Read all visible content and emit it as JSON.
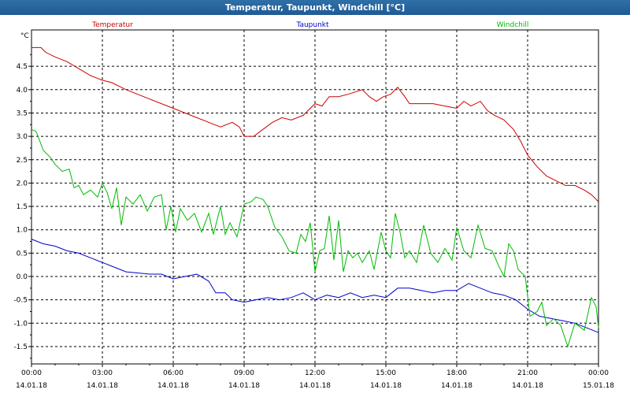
{
  "window": {
    "title": "Temperatur, Taupunkt, Windchill [°C]"
  },
  "chart_data": {
    "type": "line",
    "title": "Temperatur, Taupunkt, Windchill [°C]",
    "unit": "°C",
    "ylim": [
      -1.8,
      5.2
    ],
    "xlim": [
      0,
      24
    ],
    "grid": true,
    "legend_position": "top",
    "yticks": [
      "4.5",
      "4.0",
      "3.5",
      "3.0",
      "2.5",
      "2.0",
      "1.5",
      "1.0",
      "0.5",
      "0.0",
      "-0.5",
      "-1.0",
      "-1.5"
    ],
    "xticks": [
      {
        "time": "00:00",
        "date": "14.01.18"
      },
      {
        "time": "03:00",
        "date": "14.01.18"
      },
      {
        "time": "06:00",
        "date": "14.01.18"
      },
      {
        "time": "09:00",
        "date": "14.01.18"
      },
      {
        "time": "12:00",
        "date": "14.01.18"
      },
      {
        "time": "15:00",
        "date": "14.01.18"
      },
      {
        "time": "18:00",
        "date": "14.01.18"
      },
      {
        "time": "21:00",
        "date": "14.01.18"
      },
      {
        "time": "00:00",
        "date": "15.01.18"
      }
    ],
    "series": [
      {
        "name": "Temperatur",
        "color": "#cc0000",
        "points": [
          [
            0,
            4.9
          ],
          [
            0.4,
            4.9
          ],
          [
            0.6,
            4.8
          ],
          [
            1,
            4.7
          ],
          [
            1.5,
            4.6
          ],
          [
            2,
            4.45
          ],
          [
            2.5,
            4.3
          ],
          [
            3,
            4.2
          ],
          [
            3.4,
            4.15
          ],
          [
            4,
            4.0
          ],
          [
            5,
            3.8
          ],
          [
            6,
            3.6
          ],
          [
            6.5,
            3.5
          ],
          [
            7,
            3.4
          ],
          [
            7.5,
            3.3
          ],
          [
            8,
            3.2
          ],
          [
            8.5,
            3.3
          ],
          [
            8.8,
            3.2
          ],
          [
            9,
            3.0
          ],
          [
            9.4,
            3.0
          ],
          [
            9.8,
            3.15
          ],
          [
            10.2,
            3.3
          ],
          [
            10.6,
            3.4
          ],
          [
            11,
            3.35
          ],
          [
            11.5,
            3.45
          ],
          [
            12,
            3.7
          ],
          [
            12.3,
            3.65
          ],
          [
            12.6,
            3.85
          ],
          [
            13,
            3.85
          ],
          [
            13.4,
            3.9
          ],
          [
            14,
            4.0
          ],
          [
            14.3,
            3.85
          ],
          [
            14.6,
            3.75
          ],
          [
            14.9,
            3.85
          ],
          [
            15.2,
            3.9
          ],
          [
            15.5,
            4.05
          ],
          [
            15.8,
            3.85
          ],
          [
            16,
            3.7
          ],
          [
            16.5,
            3.7
          ],
          [
            17,
            3.7
          ],
          [
            17.5,
            3.65
          ],
          [
            18,
            3.6
          ],
          [
            18.3,
            3.75
          ],
          [
            18.6,
            3.65
          ],
          [
            19,
            3.75
          ],
          [
            19.3,
            3.55
          ],
          [
            19.6,
            3.45
          ],
          [
            20,
            3.35
          ],
          [
            20.4,
            3.15
          ],
          [
            20.7,
            2.9
          ],
          [
            21,
            2.6
          ],
          [
            21.4,
            2.35
          ],
          [
            21.8,
            2.15
          ],
          [
            22.2,
            2.05
          ],
          [
            22.6,
            1.95
          ],
          [
            23,
            1.95
          ],
          [
            23.4,
            1.85
          ],
          [
            23.7,
            1.75
          ],
          [
            24,
            1.6
          ]
        ]
      },
      {
        "name": "Taupunkt",
        "color": "#0000cc",
        "points": [
          [
            0,
            0.8
          ],
          [
            0.5,
            0.7
          ],
          [
            1,
            0.65
          ],
          [
            1.5,
            0.55
          ],
          [
            2,
            0.5
          ],
          [
            2.5,
            0.4
          ],
          [
            3,
            0.3
          ],
          [
            3.5,
            0.2
          ],
          [
            4,
            0.1
          ],
          [
            5,
            0.05
          ],
          [
            5.5,
            0.05
          ],
          [
            6,
            -0.05
          ],
          [
            6.5,
            0.0
          ],
          [
            7,
            0.05
          ],
          [
            7.5,
            -0.1
          ],
          [
            7.8,
            -0.35
          ],
          [
            8.2,
            -0.35
          ],
          [
            8.5,
            -0.5
          ],
          [
            9,
            -0.55
          ],
          [
            9.5,
            -0.5
          ],
          [
            10,
            -0.45
          ],
          [
            10.5,
            -0.5
          ],
          [
            11,
            -0.45
          ],
          [
            11.5,
            -0.35
          ],
          [
            12,
            -0.5
          ],
          [
            12.5,
            -0.4
          ],
          [
            13,
            -0.45
          ],
          [
            13.5,
            -0.35
          ],
          [
            14,
            -0.45
          ],
          [
            14.5,
            -0.4
          ],
          [
            15,
            -0.45
          ],
          [
            15.5,
            -0.25
          ],
          [
            16,
            -0.25
          ],
          [
            16.5,
            -0.3
          ],
          [
            17,
            -0.35
          ],
          [
            17.5,
            -0.3
          ],
          [
            18,
            -0.3
          ],
          [
            18.5,
            -0.15
          ],
          [
            19,
            -0.25
          ],
          [
            19.5,
            -0.35
          ],
          [
            20,
            -0.4
          ],
          [
            20.5,
            -0.5
          ],
          [
            21,
            -0.7
          ],
          [
            21.5,
            -0.85
          ],
          [
            22,
            -0.9
          ],
          [
            22.5,
            -0.95
          ],
          [
            23,
            -1.0
          ],
          [
            23.5,
            -1.1
          ],
          [
            24,
            -1.2
          ]
        ]
      },
      {
        "name": "Windchill",
        "color": "#00bb00",
        "points": [
          [
            0,
            3.15
          ],
          [
            0.2,
            3.1
          ],
          [
            0.5,
            2.7
          ],
          [
            0.8,
            2.55
          ],
          [
            1,
            2.4
          ],
          [
            1.3,
            2.25
          ],
          [
            1.6,
            2.3
          ],
          [
            1.8,
            1.9
          ],
          [
            2,
            1.95
          ],
          [
            2.2,
            1.75
          ],
          [
            2.5,
            1.85
          ],
          [
            2.8,
            1.7
          ],
          [
            3,
            2.0
          ],
          [
            3.2,
            1.8
          ],
          [
            3.4,
            1.45
          ],
          [
            3.6,
            1.9
          ],
          [
            3.8,
            1.1
          ],
          [
            4,
            1.7
          ],
          [
            4.3,
            1.55
          ],
          [
            4.6,
            1.75
          ],
          [
            4.9,
            1.4
          ],
          [
            5.2,
            1.7
          ],
          [
            5.5,
            1.75
          ],
          [
            5.7,
            1.0
          ],
          [
            5.9,
            1.5
          ],
          [
            6.1,
            0.95
          ],
          [
            6.3,
            1.45
          ],
          [
            6.6,
            1.2
          ],
          [
            6.9,
            1.35
          ],
          [
            7.2,
            0.95
          ],
          [
            7.5,
            1.35
          ],
          [
            7.7,
            0.9
          ],
          [
            8,
            1.5
          ],
          [
            8.2,
            0.9
          ],
          [
            8.4,
            1.15
          ],
          [
            8.7,
            0.85
          ],
          [
            9,
            1.55
          ],
          [
            9.3,
            1.6
          ],
          [
            9.5,
            1.7
          ],
          [
            9.8,
            1.65
          ],
          [
            10,
            1.5
          ],
          [
            10.3,
            1.05
          ],
          [
            10.6,
            0.85
          ],
          [
            10.9,
            0.55
          ],
          [
            11.2,
            0.5
          ],
          [
            11.4,
            0.9
          ],
          [
            11.6,
            0.75
          ],
          [
            11.8,
            1.15
          ],
          [
            12,
            0.1
          ],
          [
            12.2,
            0.55
          ],
          [
            12.4,
            0.6
          ],
          [
            12.6,
            1.3
          ],
          [
            12.8,
            0.35
          ],
          [
            13,
            1.2
          ],
          [
            13.2,
            0.1
          ],
          [
            13.4,
            0.55
          ],
          [
            13.6,
            0.4
          ],
          [
            13.8,
            0.5
          ],
          [
            14,
            0.3
          ],
          [
            14.3,
            0.55
          ],
          [
            14.5,
            0.15
          ],
          [
            14.8,
            0.95
          ],
          [
            15,
            0.55
          ],
          [
            15.2,
            0.4
          ],
          [
            15.4,
            1.35
          ],
          [
            15.6,
            0.95
          ],
          [
            15.8,
            0.4
          ],
          [
            16,
            0.55
          ],
          [
            16.3,
            0.3
          ],
          [
            16.6,
            1.1
          ],
          [
            16.9,
            0.5
          ],
          [
            17.2,
            0.3
          ],
          [
            17.5,
            0.6
          ],
          [
            17.8,
            0.35
          ],
          [
            18,
            1.05
          ],
          [
            18.3,
            0.55
          ],
          [
            18.6,
            0.4
          ],
          [
            18.9,
            1.1
          ],
          [
            19.2,
            0.6
          ],
          [
            19.5,
            0.55
          ],
          [
            19.8,
            0.2
          ],
          [
            20,
            0.0
          ],
          [
            20.2,
            0.7
          ],
          [
            20.4,
            0.55
          ],
          [
            20.6,
            0.15
          ],
          [
            20.9,
            0.0
          ],
          [
            21.1,
            -0.85
          ],
          [
            21.4,
            -0.75
          ],
          [
            21.6,
            -0.55
          ],
          [
            21.8,
            -1.05
          ],
          [
            22.1,
            -0.9
          ],
          [
            22.4,
            -1.05
          ],
          [
            22.7,
            -1.5
          ],
          [
            23,
            -1.0
          ],
          [
            23.4,
            -1.15
          ],
          [
            23.7,
            -0.45
          ],
          [
            23.9,
            -0.65
          ],
          [
            24,
            -1.1
          ]
        ]
      }
    ]
  }
}
